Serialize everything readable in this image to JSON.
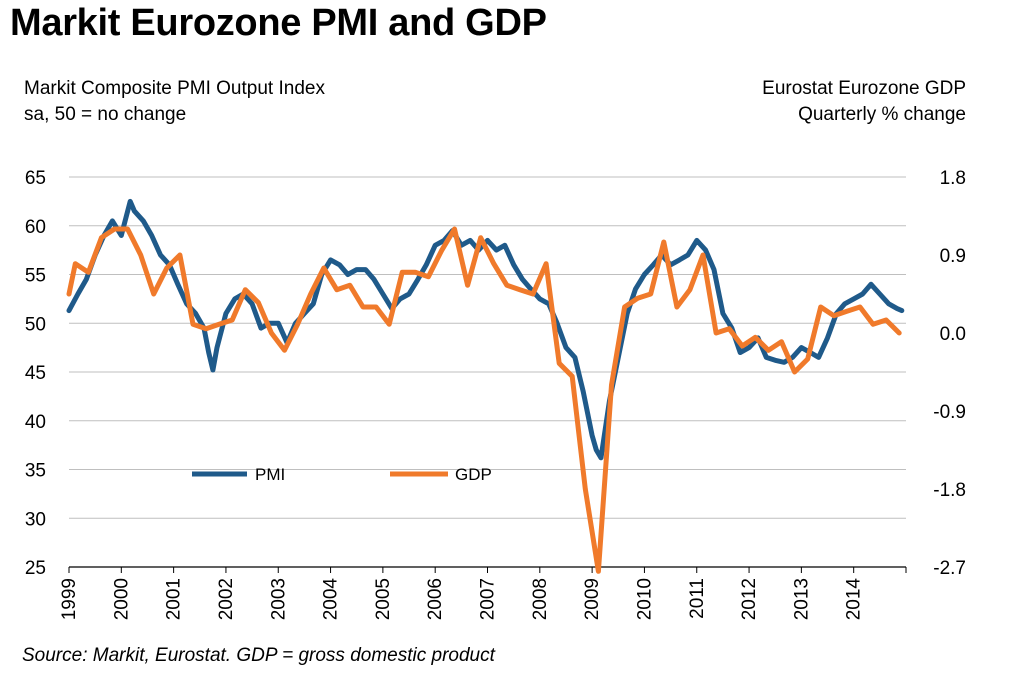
{
  "title": "Markit Eurozone PMI and GDP",
  "left_axis_title": [
    "Markit Composite PMI Output Index",
    "sa, 50 = no change"
  ],
  "right_axis_title": [
    "Eurostat Eurozone GDP",
    "Quarterly % change"
  ],
  "source": "Source: Markit, Eurostat. GDP = gross domestic product",
  "colors": {
    "pmi": "#1f5a8a",
    "gdp": "#f07a2b",
    "grid": "#bfbfbf"
  },
  "chart_data": {
    "type": "line",
    "x_ticks": [
      "1999",
      "2000",
      "2001",
      "2002",
      "2003",
      "2004",
      "2005",
      "2006",
      "2007",
      "2008",
      "2009",
      "2010",
      "2011",
      "2012",
      "2013",
      "2014"
    ],
    "x_range": [
      1999.0,
      2015.0
    ],
    "y_left": {
      "range": [
        25,
        65
      ],
      "ticks": [
        "25",
        "30",
        "35",
        "40",
        "45",
        "50",
        "55",
        "60",
        "65"
      ]
    },
    "y_right": {
      "range": [
        -2.7,
        1.8
      ],
      "ticks": [
        "-2.7",
        "-1.8",
        "-0.9",
        "0.0",
        "0.9",
        "1.8"
      ]
    },
    "grid": "horizontal",
    "legend": {
      "position": "lower-left",
      "entries": [
        "PMI",
        "GDP"
      ]
    },
    "series": [
      {
        "name": "PMI",
        "axis": "left",
        "x": [
          1999.0,
          1999.17,
          1999.33,
          1999.5,
          1999.67,
          1999.83,
          2000.0,
          2000.17,
          2000.25,
          2000.42,
          2000.58,
          2000.75,
          2000.92,
          2001.08,
          2001.25,
          2001.42,
          2001.58,
          2001.67,
          2001.75,
          2001.83,
          2002.0,
          2002.17,
          2002.33,
          2002.5,
          2002.67,
          2002.83,
          2003.0,
          2003.17,
          2003.33,
          2003.5,
          2003.67,
          2003.83,
          2004.0,
          2004.17,
          2004.33,
          2004.5,
          2004.67,
          2004.83,
          2005.0,
          2005.17,
          2005.33,
          2005.5,
          2005.67,
          2005.83,
          2006.0,
          2006.17,
          2006.33,
          2006.5,
          2006.67,
          2006.83,
          2007.0,
          2007.17,
          2007.33,
          2007.5,
          2007.67,
          2007.83,
          2008.0,
          2008.17,
          2008.33,
          2008.5,
          2008.67,
          2008.83,
          2009.0,
          2009.08,
          2009.17,
          2009.33,
          2009.5,
          2009.67,
          2009.83,
          2010.0,
          2010.17,
          2010.33,
          2010.5,
          2010.67,
          2010.83,
          2011.0,
          2011.17,
          2011.33,
          2011.5,
          2011.67,
          2011.83,
          2012.0,
          2012.17,
          2012.33,
          2012.5,
          2012.67,
          2012.83,
          2013.0,
          2013.17,
          2013.33,
          2013.5,
          2013.67,
          2013.83,
          2014.0,
          2014.17,
          2014.33,
          2014.5,
          2014.67,
          2014.83,
          2014.92
        ],
        "values": [
          51.3,
          53.0,
          54.5,
          57.0,
          59.0,
          60.5,
          59.0,
          62.5,
          61.5,
          60.5,
          59.0,
          57.0,
          56.0,
          54.0,
          52.0,
          51.0,
          49.5,
          47.0,
          45.2,
          47.5,
          51.0,
          52.5,
          53.0,
          52.0,
          49.5,
          50.0,
          50.0,
          48.0,
          50.0,
          51.0,
          52.0,
          55.0,
          56.5,
          56.0,
          55.0,
          55.5,
          55.5,
          54.5,
          53.0,
          51.5,
          52.5,
          53.0,
          54.5,
          56.0,
          58.0,
          58.5,
          59.5,
          58.0,
          58.5,
          57.5,
          58.5,
          57.5,
          58.0,
          56.0,
          54.5,
          53.5,
          52.5,
          52.0,
          50.0,
          47.5,
          46.5,
          43.0,
          38.5,
          37.0,
          36.2,
          42.0,
          46.5,
          51.0,
          53.5,
          55.0,
          56.0,
          57.0,
          56.0,
          56.5,
          57.0,
          58.5,
          57.5,
          55.5,
          51.0,
          49.5,
          47.0,
          47.5,
          48.5,
          46.5,
          46.2,
          46.0,
          46.5,
          47.5,
          47.0,
          46.5,
          48.5,
          51.0,
          52.0,
          52.5,
          53.0,
          54.0,
          53.0,
          52.0,
          51.5,
          51.3
        ]
      },
      {
        "name": "GDP",
        "axis": "right",
        "x": [
          1999.0,
          1999.12,
          1999.37,
          1999.62,
          1999.87,
          2000.12,
          2000.37,
          2000.62,
          2000.87,
          2001.12,
          2001.37,
          2001.62,
          2001.87,
          2002.12,
          2002.37,
          2002.62,
          2002.87,
          2003.12,
          2003.37,
          2003.62,
          2003.87,
          2004.12,
          2004.37,
          2004.62,
          2004.87,
          2005.12,
          2005.37,
          2005.62,
          2005.87,
          2006.12,
          2006.37,
          2006.62,
          2006.87,
          2007.12,
          2007.37,
          2007.62,
          2007.87,
          2008.12,
          2008.37,
          2008.62,
          2008.87,
          2009.12,
          2009.37,
          2009.62,
          2009.87,
          2010.12,
          2010.37,
          2010.62,
          2010.87,
          2011.12,
          2011.37,
          2011.62,
          2011.87,
          2012.12,
          2012.37,
          2012.62,
          2012.87,
          2013.12,
          2013.37,
          2013.62,
          2013.87,
          2014.12,
          2014.37,
          2014.62,
          2014.87
        ],
        "values": [
          0.45,
          0.8,
          0.7,
          1.1,
          1.2,
          1.2,
          0.9,
          0.45,
          0.75,
          0.9,
          0.1,
          0.05,
          0.1,
          0.15,
          0.5,
          0.35,
          0.0,
          -0.2,
          0.1,
          0.45,
          0.75,
          0.5,
          0.55,
          0.3,
          0.3,
          0.1,
          0.7,
          0.7,
          0.65,
          0.95,
          1.2,
          0.55,
          1.1,
          0.8,
          0.55,
          0.5,
          0.45,
          0.8,
          -0.35,
          -0.5,
          -1.8,
          -2.75,
          -0.6,
          0.3,
          0.4,
          0.45,
          1.05,
          0.3,
          0.5,
          0.9,
          0.0,
          0.05,
          -0.15,
          -0.05,
          -0.2,
          -0.1,
          -0.45,
          -0.3,
          0.3,
          0.2,
          0.25,
          0.3,
          0.1,
          0.15,
          0.0
        ]
      }
    ]
  }
}
